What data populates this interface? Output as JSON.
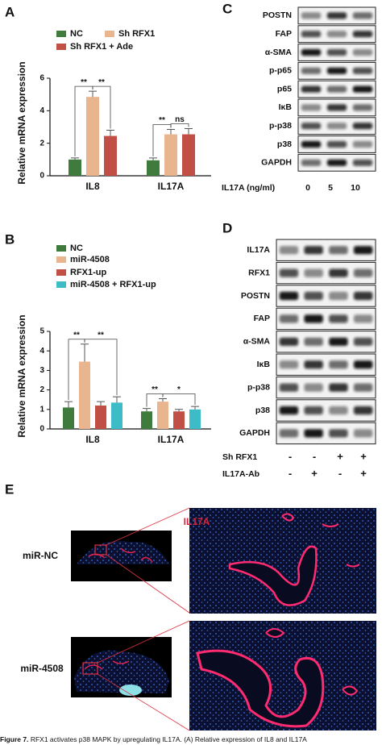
{
  "panel_labels": [
    "A",
    "B",
    "C",
    "D",
    "E"
  ],
  "chart_data": [
    {
      "type": "bar",
      "categories": [
        "IL8",
        "IL17A"
      ],
      "ylabel": "Relative mRNA expression",
      "ylim": [
        0,
        6
      ],
      "yticks": [
        0,
        2,
        4,
        6
      ],
      "series": [
        {
          "name": "NC",
          "color": "#3e7b3c",
          "values": [
            1.0,
            0.95
          ],
          "errors": [
            0.1,
            0.15
          ]
        },
        {
          "name": "Sh RFX1",
          "color": "#e9b58f",
          "values": [
            4.85,
            2.55
          ],
          "errors": [
            0.35,
            0.3
          ]
        },
        {
          "name": "Sh RFX1 + Ade",
          "color": "#c24f45",
          "values": [
            2.45,
            2.55
          ],
          "errors": [
            0.35,
            0.35
          ]
        }
      ],
      "annotations": [
        "**",
        "**",
        "**",
        "ns"
      ]
    },
    {
      "type": "bar",
      "categories": [
        "IL8",
        "IL17A"
      ],
      "ylabel": "Relative mRNA expression",
      "ylim": [
        0,
        5
      ],
      "yticks": [
        0,
        1,
        2,
        3,
        4,
        5
      ],
      "series": [
        {
          "name": "NC",
          "color": "#3e7b3c",
          "values": [
            1.1,
            0.9
          ],
          "errors": [
            0.3,
            0.15
          ]
        },
        {
          "name": "miR-4508",
          "color": "#e9b58f",
          "values": [
            3.45,
            1.4
          ],
          "errors": [
            0.9,
            0.15
          ]
        },
        {
          "name": "RFX1-up",
          "color": "#c24f45",
          "values": [
            1.2,
            0.9
          ],
          "errors": [
            0.2,
            0.1
          ]
        },
        {
          "name": "miR-4508 + RFX1-up",
          "color": "#3cbcc6",
          "values": [
            1.35,
            1.0
          ],
          "errors": [
            0.3,
            0.15
          ]
        }
      ],
      "annotations": [
        "**",
        "**",
        "**",
        "*"
      ]
    }
  ],
  "blot_c": {
    "rows": [
      "POSTN",
      "FAP",
      "α-SMA",
      "p-p65",
      "p65",
      "IκB",
      "p-p38",
      "p38",
      "GAPDH"
    ],
    "condition": "IL17A (ng/ml)",
    "lanes": [
      "0",
      "5",
      "10"
    ]
  },
  "blot_d": {
    "rows": [
      "IL17A",
      "RFX1",
      "POSTN",
      "FAP",
      "α-SMA",
      "IκB",
      "p-p38",
      "p38",
      "GAPDH"
    ],
    "conditions": [
      {
        "name": "Sh RFX1",
        "lanes": [
          "-",
          "-",
          "+",
          "+"
        ]
      },
      {
        "name": "IL17A-Ab",
        "lanes": [
          "-",
          "+",
          "-",
          "+"
        ]
      }
    ]
  },
  "panel_e": {
    "stain": "IL17A",
    "rows": [
      "miR-NC",
      "miR-4508"
    ]
  },
  "caption": {
    "label": "Figure 7.",
    "text": "RFX1 activates p38 MAPK by upregulating IL17A. (A) Relative expression of IL8 and IL17A"
  }
}
